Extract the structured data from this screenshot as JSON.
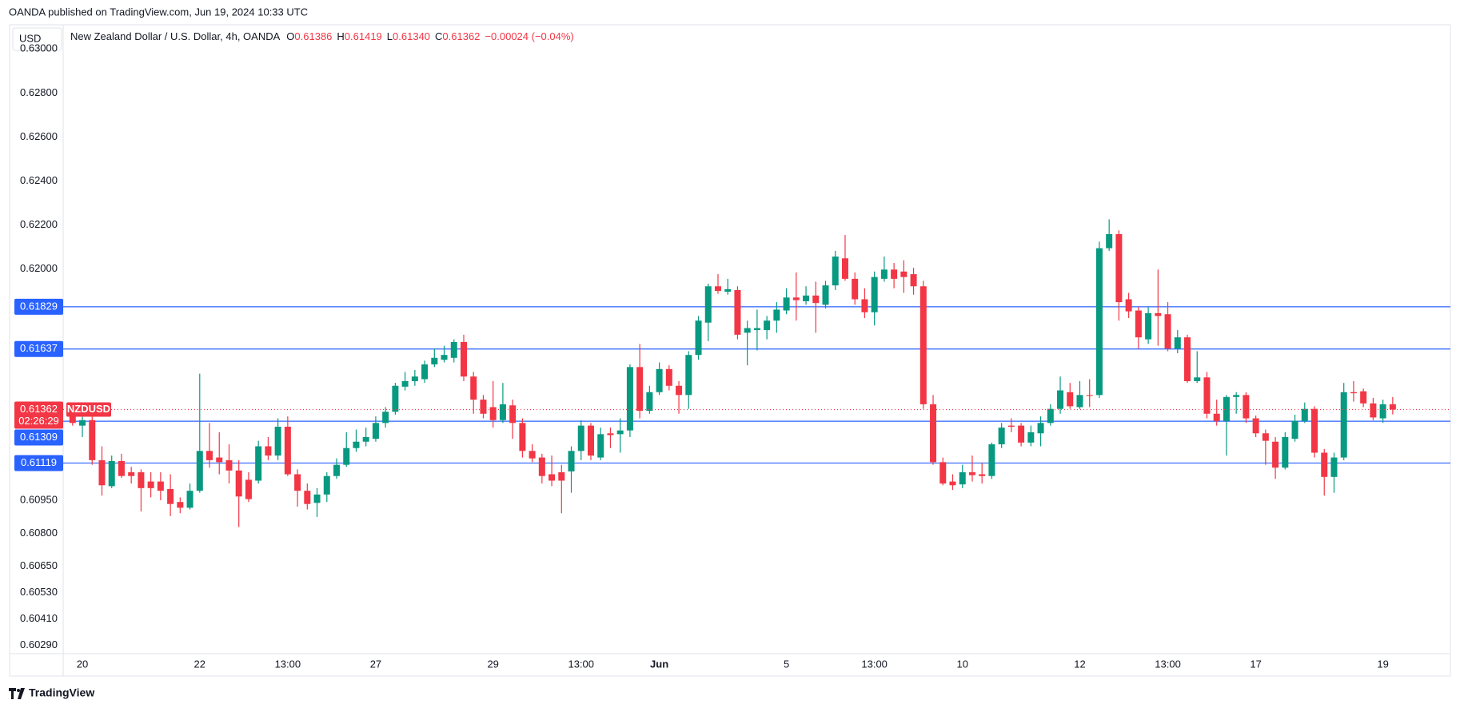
{
  "page": {
    "publisher": "OANDA published on TradingView.com, Jun 19, 2024 10:33 UTC",
    "brand": "TradingView"
  },
  "chart_data": {
    "type": "candlestick",
    "title": "New Zealand Dollar / U.S. Dollar, 4h, OANDA",
    "symbol": "NZDUSD",
    "currency": "USD",
    "countdown": "02:26:29",
    "ohlc_keys": [
      "O",
      "H",
      "L",
      "C"
    ],
    "ohlc_labels": [
      "0.61386",
      "0.61419",
      "0.61340",
      "0.61362"
    ],
    "change_label": "−0.00024 (−0.04%)",
    "up_color": "#089981",
    "down_color": "#f23645",
    "hline_color": "#2962ff",
    "grid": false,
    "ylim": [
      0.60253,
      0.63012
    ],
    "yticks": [
      {
        "value": 0.63,
        "label": "0.63000"
      },
      {
        "value": 0.628,
        "label": "0.62800"
      },
      {
        "value": 0.626,
        "label": "0.62600"
      },
      {
        "value": 0.624,
        "label": "0.62400"
      },
      {
        "value": 0.622,
        "label": "0.62200"
      },
      {
        "value": 0.62,
        "label": "0.62000"
      },
      {
        "value": 0.6095,
        "label": "0.60950"
      },
      {
        "value": 0.608,
        "label": "0.60800"
      },
      {
        "value": 0.6065,
        "label": "0.60650"
      },
      {
        "value": 0.6053,
        "label": "0.60530"
      },
      {
        "value": 0.6041,
        "label": "0.60410"
      },
      {
        "value": 0.6029,
        "label": "0.60290"
      }
    ],
    "hlines": [
      0.61829,
      0.61637,
      0.61309,
      0.61119
    ],
    "categories": [
      null,
      "20",
      null,
      null,
      null,
      null,
      null,
      null,
      null,
      null,
      null,
      null,
      null,
      "22",
      null,
      null,
      null,
      null,
      null,
      null,
      null,
      null,
      "13:00",
      null,
      null,
      null,
      null,
      null,
      null,
      null,
      null,
      "27",
      null,
      null,
      null,
      null,
      null,
      null,
      null,
      null,
      null,
      null,
      null,
      "29",
      null,
      null,
      null,
      null,
      null,
      null,
      null,
      null,
      "13:00",
      null,
      null,
      null,
      null,
      null,
      null,
      null,
      "Jun",
      null,
      null,
      null,
      null,
      null,
      null,
      null,
      null,
      null,
      null,
      null,
      null,
      "5",
      null,
      null,
      null,
      null,
      null,
      null,
      null,
      null,
      "13:00",
      null,
      null,
      null,
      null,
      null,
      null,
      null,
      null,
      "10",
      null,
      null,
      null,
      null,
      null,
      null,
      null,
      null,
      null,
      null,
      null,
      "12",
      null,
      null,
      null,
      null,
      null,
      null,
      null,
      null,
      "13:00",
      null,
      null,
      null,
      null,
      null,
      null,
      null,
      null,
      "17",
      null,
      null,
      null,
      null,
      null,
      null,
      null,
      null,
      null,
      null,
      null,
      null,
      "19",
      null
    ],
    "open": [
      0.61339,
      0.61289,
      0.61314,
      0.61132,
      0.61014,
      0.61128,
      0.61077,
      0.61077,
      0.61035,
      0.61035,
      0.61001,
      0.60942,
      0.60916,
      0.60993,
      0.61174,
      0.61144,
      0.61132,
      0.61085,
      0.61043,
      0.61039,
      0.61195,
      0.61153,
      0.61284,
      0.61068,
      0.60993,
      0.60938,
      0.60976,
      0.6106,
      0.61111,
      0.61187,
      0.61216,
      0.61229,
      0.61301,
      0.61352,
      0.61466,
      0.61491,
      0.615,
      0.61567,
      0.61588,
      0.61597,
      0.61669,
      0.61512,
      0.61407,
      0.61373,
      0.61314,
      0.61381,
      0.61301,
      0.61174,
      0.61144,
      0.61068,
      0.61077,
      0.61081,
      0.61174,
      0.61289,
      0.61144,
      0.61254,
      0.6125,
      0.61267,
      0.61555,
      0.61356,
      0.61441,
      0.61546,
      0.6147,
      0.61428,
      0.6161,
      0.61757,
      0.61922,
      0.61897,
      0.61905,
      0.61711,
      0.61723,
      0.61723,
      0.61766,
      0.61812,
      0.61871,
      0.61854,
      0.6188,
      0.61838,
      0.61926,
      0.62049,
      0.61956,
      0.61863,
      0.61804,
      0.61956,
      0.61998,
      0.61989,
      0.61977,
      0.61922,
      0.61386,
      0.61123,
      0.61035,
      0.61022,
      0.61077,
      0.61068,
      0.6106,
      0.61204,
      0.61289,
      0.61289,
      0.61212,
      0.61254,
      0.61301,
      0.61365,
      0.61441,
      0.61373,
      0.61428,
      0.61428,
      0.62095,
      0.62159,
      0.61863,
      0.61812,
      0.61681,
      0.618,
      0.61795,
      0.61639,
      0.6169,
      0.61491,
      0.61508,
      0.61343,
      0.6131,
      0.61419,
      0.61428,
      0.61322,
      0.61254,
      0.61216,
      0.61098,
      0.61229,
      0.6131,
      0.61365,
      0.61166,
      0.61056,
      0.61144,
      0.61441,
      0.61445,
      0.6139,
      0.61322,
      0.61386
    ],
    "high": [
      0.61373,
      0.61343,
      0.61331,
      0.61195,
      0.61153,
      0.61161,
      0.61102,
      0.6109,
      0.61077,
      0.61077,
      0.61068,
      0.60963,
      0.61026,
      0.61525,
      0.61301,
      0.61259,
      0.61204,
      0.61132,
      0.61077,
      0.6122,
      0.61237,
      0.61322,
      0.61331,
      0.6109,
      0.61026,
      0.61005,
      0.61077,
      0.6114,
      0.61259,
      0.61271,
      0.6128,
      0.61331,
      0.61373,
      0.61483,
      0.61533,
      0.61542,
      0.61584,
      0.61639,
      0.61652,
      0.61681,
      0.61702,
      0.61533,
      0.61428,
      0.61491,
      0.61483,
      0.61407,
      0.61322,
      0.61204,
      0.61161,
      0.61153,
      0.61111,
      0.61195,
      0.61314,
      0.61301,
      0.6128,
      0.6128,
      0.61322,
      0.61567,
      0.6166,
      0.6147,
      0.61576,
      0.61563,
      0.61491,
      0.61627,
      0.61787,
      0.61934,
      0.61977,
      0.61956,
      0.61922,
      0.61766,
      0.61816,
      0.61787,
      0.6185,
      0.61913,
      0.61985,
      0.61922,
      0.61943,
      0.61947,
      0.62083,
      0.62155,
      0.61985,
      0.61913,
      0.61989,
      0.62057,
      0.62028,
      0.6204,
      0.62006,
      0.61947,
      0.61428,
      0.61144,
      0.61068,
      0.61111,
      0.61153,
      0.61119,
      0.61212,
      0.61301,
      0.61322,
      0.61301,
      0.61289,
      0.61331,
      0.61386,
      0.61512,
      0.61483,
      0.61491,
      0.615,
      0.62125,
      0.62226,
      0.62176,
      0.61892,
      0.61829,
      0.61829,
      0.61998,
      0.6185,
      0.61723,
      0.61702,
      0.61627,
      0.61533,
      0.61407,
      0.61428,
      0.61441,
      0.61441,
      0.61335,
      0.61271,
      0.61237,
      0.61259,
      0.61339,
      0.61394,
      0.61377,
      0.61183,
      0.61166,
      0.61483,
      0.61491,
      0.61457,
      0.61415,
      0.61407,
      0.61419
    ],
    "low": [
      0.61289,
      0.61237,
      0.61111,
      0.60971,
      0.61005,
      0.61052,
      0.61026,
      0.60899,
      0.60963,
      0.6095,
      0.60878,
      0.60891,
      0.60908,
      0.60984,
      0.61098,
      0.61068,
      0.61026,
      0.60828,
      0.60942,
      0.61026,
      0.61132,
      0.61132,
      0.6106,
      0.60921,
      0.60908,
      0.60874,
      0.60942,
      0.61047,
      0.61102,
      0.6117,
      0.61195,
      0.61216,
      0.6128,
      0.61339,
      0.61449,
      0.6147,
      0.61483,
      0.61555,
      0.61576,
      0.61576,
      0.61491,
      0.61343,
      0.61322,
      0.6128,
      0.61301,
      0.61229,
      0.61144,
      0.61123,
      0.61026,
      0.61014,
      0.60891,
      0.60984,
      0.61132,
      0.61132,
      0.61132,
      0.61187,
      0.61166,
      0.61237,
      0.61322,
      0.61343,
      0.61428,
      0.61449,
      0.61343,
      0.61365,
      0.61588,
      0.61673,
      0.61888,
      0.61884,
      0.61681,
      0.61563,
      0.61631,
      0.61681,
      0.61711,
      0.61795,
      0.61766,
      0.61838,
      0.61711,
      0.61821,
      0.61905,
      0.61947,
      0.61838,
      0.61778,
      0.61744,
      0.61943,
      0.61913,
      0.61892,
      0.61884,
      0.61365,
      0.61111,
      0.61018,
      0.60997,
      0.61005,
      0.61035,
      0.61026,
      0.61047,
      0.61187,
      0.61259,
      0.61195,
      0.61195,
      0.61195,
      0.61289,
      0.61343,
      0.61365,
      0.61365,
      0.61373,
      0.61415,
      0.62083,
      0.61766,
      0.61778,
      0.61639,
      0.6166,
      0.61652,
      0.61627,
      0.61618,
      0.61483,
      0.61483,
      0.61322,
      0.61289,
      0.61153,
      0.61343,
      0.61301,
      0.61237,
      0.61111,
      0.61047,
      0.6109,
      0.61216,
      0.61301,
      0.61144,
      0.60971,
      0.60984,
      0.61132,
      0.61398,
      0.61373,
      0.61314,
      0.61301,
      0.6134
    ],
    "close": [
      0.61301,
      0.61314,
      0.61132,
      0.61018,
      0.61128,
      0.6106,
      0.6106,
      0.61005,
      0.61005,
      0.60993,
      0.60933,
      0.60916,
      0.60993,
      0.61174,
      0.61132,
      0.61123,
      0.61085,
      0.60967,
      0.60955,
      0.61195,
      0.61153,
      0.61284,
      0.61068,
      0.60993,
      0.60933,
      0.60976,
      0.6106,
      0.61111,
      0.61187,
      0.61216,
      0.61237,
      0.61301,
      0.61352,
      0.6147,
      0.61491,
      0.61512,
      0.61567,
      0.61597,
      0.6161,
      0.61669,
      0.61512,
      0.61407,
      0.61343,
      0.61314,
      0.61386,
      0.61301,
      0.61174,
      0.6114,
      0.6106,
      0.61039,
      0.61039,
      0.61174,
      0.61289,
      0.61153,
      0.6125,
      0.61246,
      0.61267,
      0.61555,
      0.61356,
      0.61441,
      0.61546,
      0.6147,
      0.61428,
      0.6161,
      0.61766,
      0.61922,
      0.61901,
      0.61909,
      0.61702,
      0.61732,
      0.61732,
      0.61766,
      0.61816,
      0.61871,
      0.61859,
      0.6188,
      0.61846,
      0.61926,
      0.62057,
      0.61956,
      0.61863,
      0.61804,
      0.61964,
      0.61998,
      0.61956,
      0.61964,
      0.61922,
      0.61386,
      0.61123,
      0.61026,
      0.61018,
      0.61077,
      0.61064,
      0.6106,
      0.61204,
      0.6128,
      0.61284,
      0.61212,
      0.61259,
      0.61301,
      0.61365,
      0.61449,
      0.61377,
      0.61428,
      0.61424,
      0.62095,
      0.62159,
      0.6185,
      0.61808,
      0.6169,
      0.618,
      0.61787,
      0.61639,
      0.6169,
      0.61491,
      0.61508,
      0.61343,
      0.6131,
      0.61419,
      0.61428,
      0.61322,
      0.61254,
      0.6122,
      0.61098,
      0.61237,
      0.6131,
      0.61365,
      0.61166,
      0.61056,
      0.61144,
      0.61441,
      0.61436,
      0.6139,
      0.61326,
      0.61386,
      0.61362
    ]
  }
}
